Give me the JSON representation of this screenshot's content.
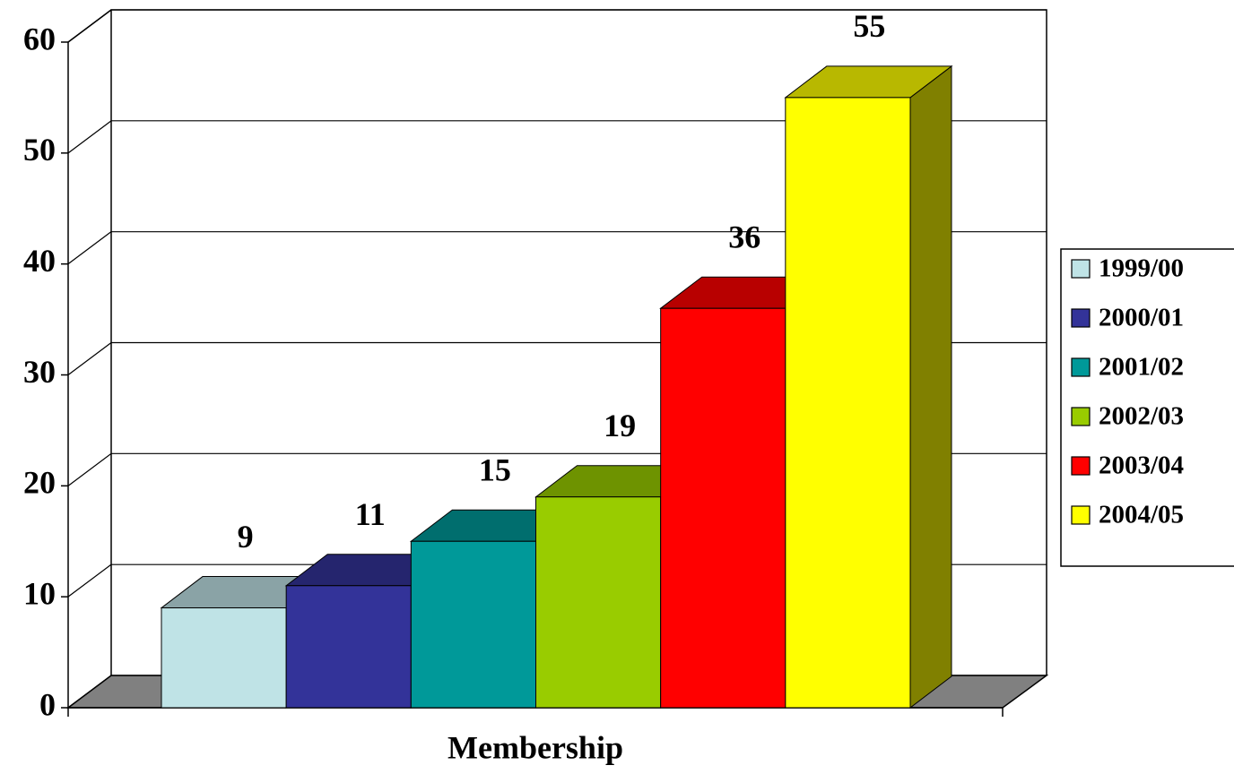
{
  "chart_data": {
    "type": "bar3d",
    "categories": [
      "Membership"
    ],
    "series": [
      {
        "name": "1999/00",
        "color": "#bfe3e6",
        "values": [
          9
        ]
      },
      {
        "name": "2000/01",
        "color": "#333399",
        "values": [
          11
        ]
      },
      {
        "name": "2001/02",
        "color": "#009999",
        "values": [
          15
        ]
      },
      {
        "name": "2002/03",
        "color": "#99cc00",
        "values": [
          19
        ]
      },
      {
        "name": "2003/04",
        "color": "#ff0000",
        "values": [
          36
        ]
      },
      {
        "name": "2004/05",
        "color": "#ffff00",
        "values": [
          55
        ]
      }
    ],
    "ylim": [
      0,
      60
    ],
    "yticks": [
      0,
      10,
      20,
      30,
      40,
      50,
      60
    ],
    "grid": true,
    "legend": "right"
  }
}
